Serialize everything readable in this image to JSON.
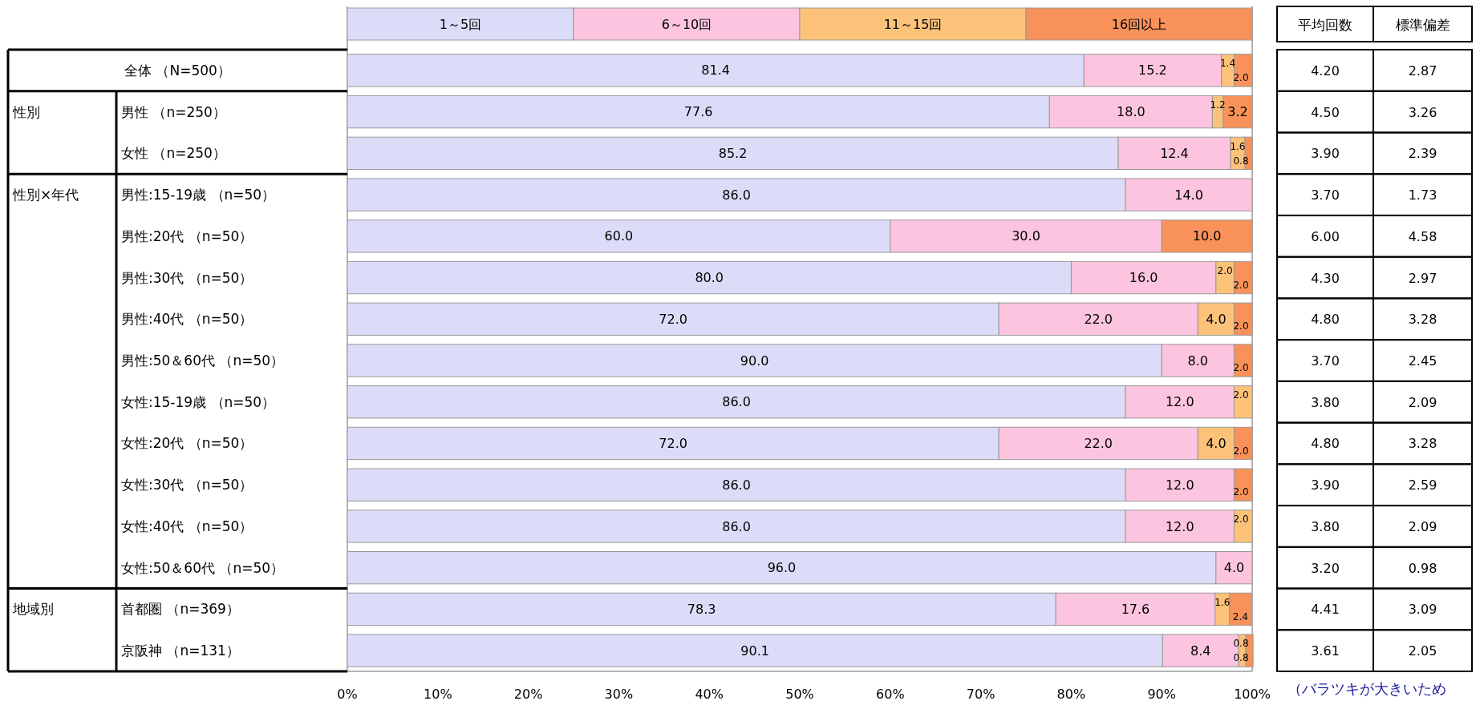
{
  "chart_data": [
    {
      "type": "bar",
      "orientation": "horizontal",
      "stacked": true,
      "legend": "top",
      "grid": false,
      "categories": [
        "全体 （N=500）",
        "男性 （n=250）",
        "女性 （n=250）",
        "男性:15-19歳 （n=50）",
        "男性:20代 （n=50）",
        "男性:30代 （n=50）",
        "男性:40代 （n=50）",
        "男性:50＆60代 （n=50）",
        "女性:15-19歳 （n=50）",
        "女性:20代 （n=50）",
        "女性:30代 （n=50）",
        "女性:40代 （n=50）",
        "女性:50＆60代 （n=50）",
        "首都圏 （n=369）",
        "京阪神 （n=131）"
      ],
      "series": [
        {
          "name": "1～5回",
          "color": "#dcdcf8",
          "values": [
            81.4,
            77.6,
            85.2,
            86.0,
            60.0,
            80.0,
            72.0,
            90.0,
            86.0,
            72.0,
            86.0,
            86.0,
            96.0,
            78.3,
            90.1
          ],
          "value_labels": [
            "81.4",
            "77.6",
            "85.2",
            "86.0",
            "60.0",
            "80.0",
            "72.0",
            "90.0",
            "86.0",
            "72.0",
            "86.0",
            "86.0",
            "96.0",
            "78.3",
            "90.1"
          ]
        },
        {
          "name": "6～10回",
          "color": "#fcc4de",
          "values": [
            15.2,
            18.0,
            12.4,
            14.0,
            30.0,
            16.0,
            22.0,
            8.0,
            12.0,
            22.0,
            12.0,
            12.0,
            4.0,
            17.6,
            8.4
          ],
          "value_labels": [
            "15.2",
            "18.0",
            "12.4",
            "14.0",
            "30.0",
            "16.0",
            "22.0",
            "8.0",
            "12.0",
            "22.0",
            "12.0",
            "12.0",
            "4.0",
            "17.6",
            "8.4"
          ]
        },
        {
          "name": "11～15回",
          "color": "#fcc27a",
          "values": [
            1.4,
            1.2,
            1.6,
            null,
            null,
            2.0,
            4.0,
            null,
            2.0,
            4.0,
            null,
            2.0,
            null,
            1.6,
            0.8
          ],
          "value_labels": [
            "1.4",
            "1.2",
            "1.6",
            null,
            null,
            "2.0",
            "4.0",
            null,
            "2.0",
            "4.0",
            null,
            "2.0",
            null,
            "1.6",
            "0.8"
          ]
        },
        {
          "name": "16回以上",
          "color": "#f8915a",
          "values": [
            2.0,
            3.2,
            0.8,
            null,
            10.0,
            2.0,
            2.0,
            2.0,
            null,
            2.0,
            2.0,
            null,
            null,
            2.4,
            0.8
          ],
          "value_labels": [
            "2.0",
            "3.2",
            "0.8",
            null,
            "10.0",
            "2.0",
            "2.0",
            "2.0",
            null,
            "2.0",
            "2.0",
            null,
            null,
            "2.4",
            "0.8"
          ]
        }
      ],
      "xlim": [
        0,
        100
      ],
      "xticks": [
        {
          "value": 0,
          "label": "0%"
        },
        {
          "value": 10,
          "label": "10%"
        },
        {
          "value": 20,
          "label": "20%"
        },
        {
          "value": 30,
          "label": "30%"
        },
        {
          "value": 40,
          "label": "40%"
        },
        {
          "value": 50,
          "label": "50%"
        },
        {
          "value": 60,
          "label": "60%"
        },
        {
          "value": 70,
          "label": "70%"
        },
        {
          "value": 80,
          "label": "80%"
        },
        {
          "value": 90,
          "label": "90%"
        },
        {
          "value": 100,
          "label": "100%"
        }
      ],
      "annotations": [
        "性別",
        "性別×年代",
        "地域別"
      ]
    },
    {
      "type": "other",
      "categories": [
        "平均回数",
        "標準偏差"
      ],
      "annotations": [
        "4.20",
        "2.87",
        "4.50",
        "3.26",
        "3.90",
        "2.39",
        "3.70",
        "1.73",
        "6.00",
        "4.58",
        "4.30",
        "2.97",
        "4.80",
        "3.28",
        "3.70",
        "2.45",
        "3.80",
        "2.09",
        "4.80",
        "3.28",
        "3.90",
        "2.59",
        "3.80",
        "2.09",
        "3.20",
        "0.98",
        "4.41",
        "3.09",
        "3.61",
        "2.05",
        "（バラツキが大きいため"
      ]
    }
  ]
}
